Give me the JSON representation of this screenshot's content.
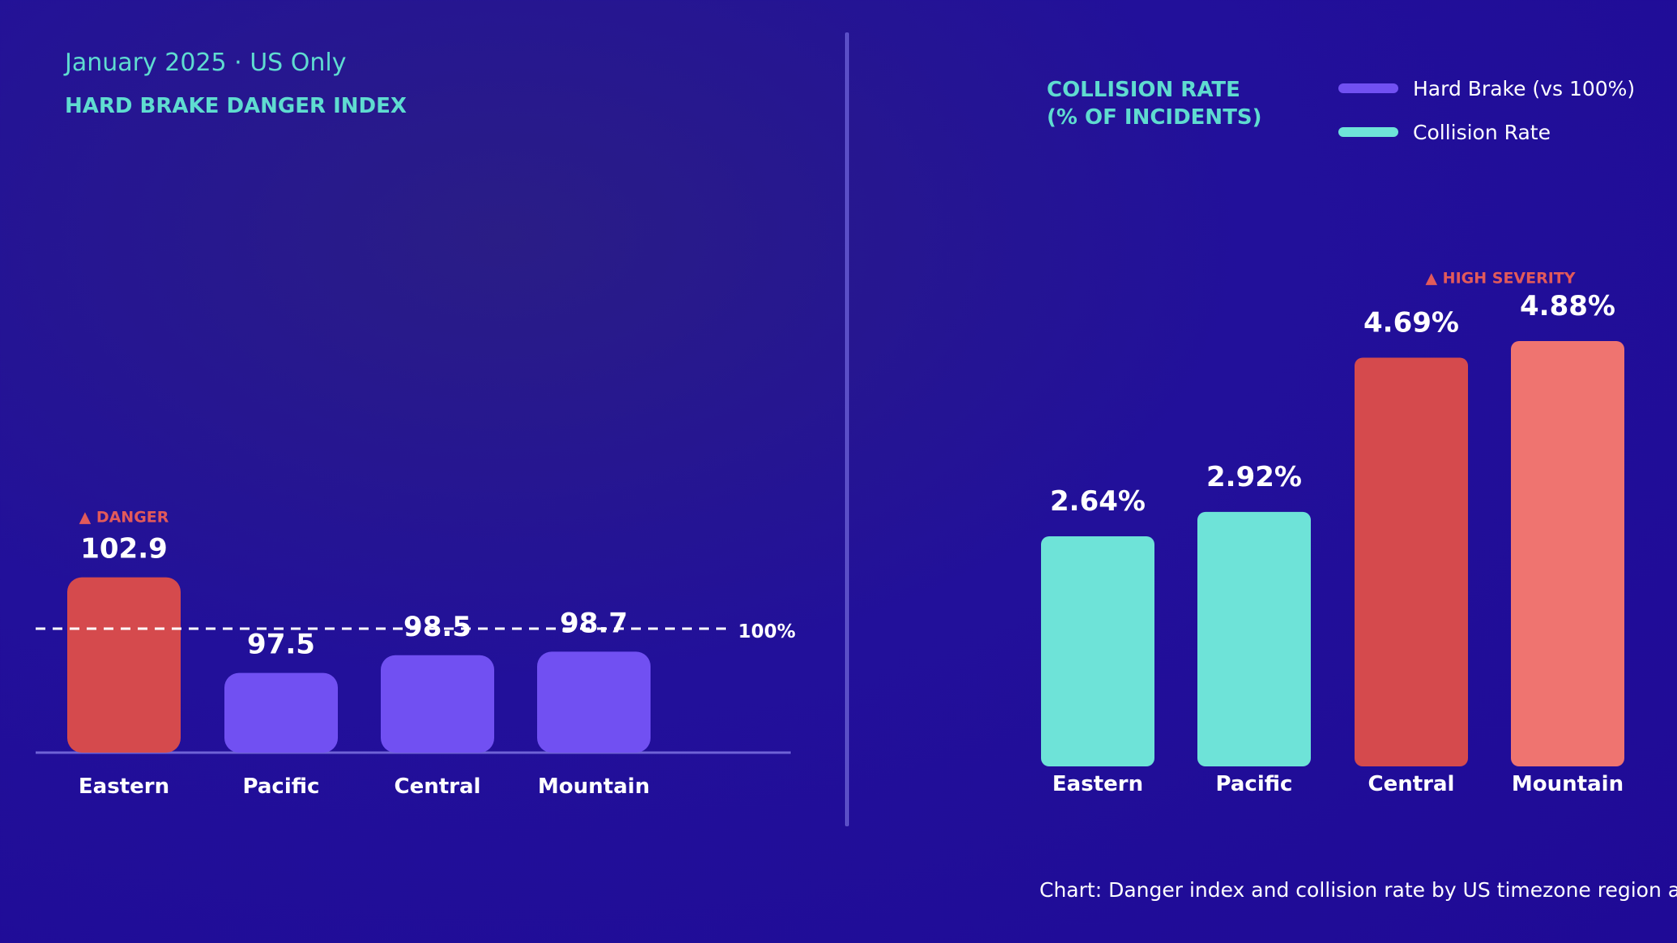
{
  "header": {
    "subtitle": "January 2025 · US Only",
    "left_title": "HARD BRAKE DANGER INDEX",
    "right_title_line1": "COLLISION RATE",
    "right_title_line2": "(% OF INCIDENTS)"
  },
  "legend": [
    {
      "label": "Hard Brake (vs 100%)",
      "color": "#7150f2"
    },
    {
      "label": "Collision Rate",
      "color": "#6ee3d8"
    }
  ],
  "note": "Chart: Danger index and collision rate by US timezone region a",
  "colors": {
    "danger": "#d54a4d",
    "severity": "#ef7470",
    "purple": "#7150f2",
    "teal": "#6ee3d8",
    "accent_text": "#5fdcd0",
    "flag_text": "#e25a5a"
  },
  "chart_data": [
    {
      "type": "bar",
      "title": "HARD BRAKE DANGER INDEX",
      "categories": [
        "Eastern",
        "Pacific",
        "Central",
        "Mountain"
      ],
      "values": [
        102.9,
        97.5,
        98.5,
        98.7
      ],
      "value_labels": [
        "102.9",
        "97.5",
        "98.5",
        "98.7"
      ],
      "reference_line": {
        "value": 100,
        "label": "100%"
      },
      "flags": [
        {
          "category": "Eastern",
          "label": "DANGER"
        }
      ],
      "bar_colors": [
        "#d54a4d",
        "#7150f2",
        "#7150f2",
        "#7150f2"
      ],
      "ylim": [
        93,
        104
      ]
    },
    {
      "type": "bar",
      "title": "COLLISION RATE (% OF INCIDENTS)",
      "categories": [
        "Eastern",
        "Pacific",
        "Central",
        "Mountain"
      ],
      "values": [
        2.64,
        2.92,
        4.69,
        4.88
      ],
      "value_labels": [
        "2.64%",
        "2.92%",
        "4.69%",
        "4.88%"
      ],
      "flags": [
        {
          "category": "Central",
          "label": "HIGH SEVERITY"
        }
      ],
      "bar_colors": [
        "#6ee3d8",
        "#6ee3d8",
        "#d54a4d",
        "#ef7470"
      ],
      "ylim": [
        0,
        4.88
      ]
    }
  ]
}
